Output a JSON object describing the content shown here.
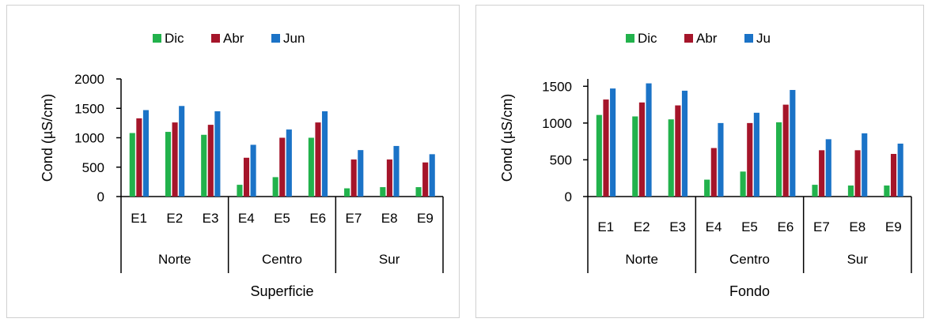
{
  "colors": {
    "Dic": "#22b24c",
    "Abr": "#a5152a",
    "Jun": "#1b73c7"
  },
  "chart_data": [
    {
      "type": "bar",
      "title": "",
      "xlabel": "Superficie",
      "ylabel": "Cond (µS/cm)",
      "ylim": [
        0,
        2000
      ],
      "yticks": [
        0,
        500,
        1000,
        1500,
        2000
      ],
      "legend_position": "top",
      "grid": false,
      "categories": [
        "E1",
        "E2",
        "E3",
        "E4",
        "E5",
        "E6",
        "E7",
        "E8",
        "E9"
      ],
      "groups": [
        {
          "label": "Norte",
          "count": 3
        },
        {
          "label": "Centro",
          "count": 3
        },
        {
          "label": "Sur",
          "count": 3
        }
      ],
      "series": [
        {
          "name": "Dic",
          "values": [
            1080,
            1100,
            1050,
            200,
            330,
            1000,
            140,
            160,
            160
          ]
        },
        {
          "name": "Abr",
          "values": [
            1330,
            1260,
            1220,
            660,
            1000,
            1260,
            630,
            630,
            580
          ]
        },
        {
          "name": "Jun",
          "values": [
            1470,
            1540,
            1450,
            880,
            1140,
            1450,
            790,
            860,
            720
          ]
        }
      ]
    },
    {
      "type": "bar",
      "title": "",
      "xlabel": "Fondo",
      "ylabel": "Cond (µS/cm)",
      "ylim": [
        0,
        1600
      ],
      "yticks": [
        0,
        500,
        1000,
        1500
      ],
      "legend_position": "top",
      "grid": false,
      "categories": [
        "E1",
        "E2",
        "E3",
        "E4",
        "E5",
        "E6",
        "E7",
        "E8",
        "E9"
      ],
      "groups": [
        {
          "label": "Norte",
          "count": 3
        },
        {
          "label": "Centro",
          "count": 3
        },
        {
          "label": "Sur",
          "count": 3
        }
      ],
      "series": [
        {
          "name": "Dic",
          "values": [
            1110,
            1090,
            1050,
            230,
            340,
            1010,
            160,
            150,
            150
          ]
        },
        {
          "name": "Abr",
          "values": [
            1320,
            1280,
            1240,
            660,
            1000,
            1250,
            630,
            630,
            580
          ]
        },
        {
          "name": "Ju",
          "values": [
            1470,
            1540,
            1440,
            1000,
            1140,
            1450,
            780,
            860,
            720
          ]
        }
      ]
    }
  ]
}
